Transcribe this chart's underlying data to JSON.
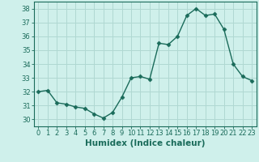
{
  "x": [
    0,
    1,
    2,
    3,
    4,
    5,
    6,
    7,
    8,
    9,
    10,
    11,
    12,
    13,
    14,
    15,
    16,
    17,
    18,
    19,
    20,
    21,
    22,
    23
  ],
  "y": [
    32.0,
    32.1,
    31.2,
    31.1,
    30.9,
    30.8,
    30.4,
    30.1,
    30.5,
    31.6,
    33.0,
    33.1,
    32.9,
    35.5,
    35.4,
    36.0,
    37.5,
    38.0,
    37.5,
    37.6,
    36.5,
    34.0,
    33.1,
    32.8
  ],
  "line_color": "#1a6b5a",
  "marker": "D",
  "marker_size": 2.5,
  "bg_color": "#cff0eb",
  "grid_color": "#b0d8d2",
  "xlabel": "Humidex (Indice chaleur)",
  "xlim": [
    -0.5,
    23.5
  ],
  "ylim": [
    29.5,
    38.5
  ],
  "yticks": [
    30,
    31,
    32,
    33,
    34,
    35,
    36,
    37,
    38
  ],
  "xticks": [
    0,
    1,
    2,
    3,
    4,
    5,
    6,
    7,
    8,
    9,
    10,
    11,
    12,
    13,
    14,
    15,
    16,
    17,
    18,
    19,
    20,
    21,
    22,
    23
  ],
  "tick_label_fontsize": 6.0,
  "xlabel_fontsize": 7.5,
  "line_width": 1.0
}
